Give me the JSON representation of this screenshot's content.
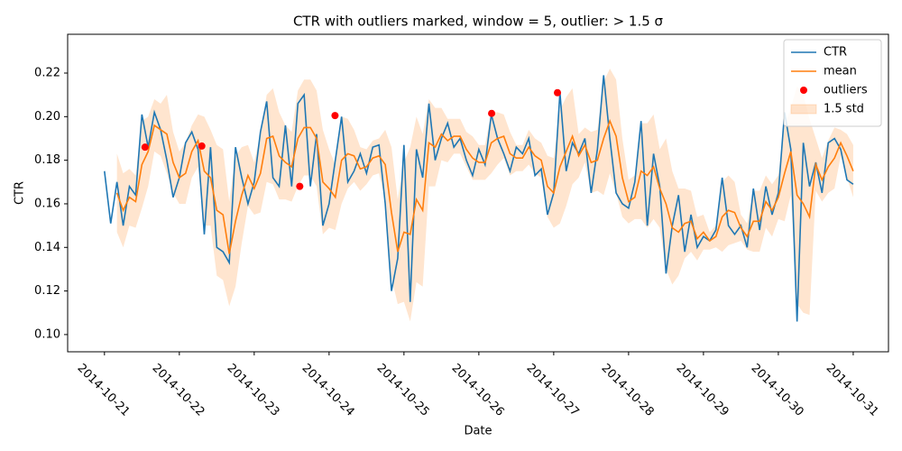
{
  "chart_data": {
    "type": "line",
    "title": "CTR with outliers marked, window = 5, outlier: > 1.5 σ",
    "xlabel": "Date",
    "ylabel": "CTR",
    "xlim": [
      -11.8,
      251.3
    ],
    "ylim": [
      0.0921,
      0.2378
    ],
    "xticks": [
      {
        "value": 0,
        "label": "2014-10-21"
      },
      {
        "value": 24,
        "label": "2014-10-22"
      },
      {
        "value": 48,
        "label": "2014-10-23"
      },
      {
        "value": 72,
        "label": "2014-10-24"
      },
      {
        "value": 96,
        "label": "2014-10-25"
      },
      {
        "value": 120,
        "label": "2014-10-26"
      },
      {
        "value": 144,
        "label": "2014-10-27"
      },
      {
        "value": 168,
        "label": "2014-10-28"
      },
      {
        "value": 192,
        "label": "2014-10-29"
      },
      {
        "value": 216,
        "label": "2014-10-30"
      },
      {
        "value": 240,
        "label": "2014-10-31"
      }
    ],
    "yticks": [
      {
        "value": 0.1,
        "label": "0.10"
      },
      {
        "value": 0.12,
        "label": "0.12"
      },
      {
        "value": 0.14,
        "label": "0.14"
      },
      {
        "value": 0.16,
        "label": "0.16"
      },
      {
        "value": 0.18,
        "label": "0.18"
      },
      {
        "value": 0.2,
        "label": "0.20"
      },
      {
        "value": 0.22,
        "label": "0.22"
      }
    ],
    "legend": "upper right",
    "series": [
      {
        "name": "CTR",
        "color": "#1f77b4",
        "x": [
          0,
          2,
          4,
          6,
          8,
          10,
          12,
          14,
          16,
          18,
          20,
          22,
          24,
          26,
          28,
          30,
          32,
          34,
          36,
          38,
          40,
          42,
          44,
          46,
          48,
          50,
          52,
          54,
          56,
          58,
          60,
          62,
          64,
          66,
          68,
          70,
          72,
          74,
          76,
          78,
          80,
          82,
          84,
          86,
          88,
          90,
          92,
          94,
          96,
          98,
          100,
          102,
          104,
          106,
          108,
          110,
          112,
          114,
          116,
          118,
          120,
          122,
          124,
          126,
          128,
          130,
          132,
          134,
          136,
          138,
          140,
          142,
          144,
          146,
          148,
          150,
          152,
          154,
          156,
          158,
          160,
          162,
          164,
          166,
          168,
          170,
          172,
          174,
          176,
          178,
          180,
          182,
          184,
          186,
          188,
          190,
          192,
          194,
          196,
          198,
          200,
          202,
          204,
          206,
          208,
          210,
          212,
          214,
          216,
          218,
          220,
          222,
          224,
          226,
          228,
          230,
          232,
          234,
          236,
          238,
          240
        ],
        "values": [
          0.175,
          0.151,
          0.17,
          0.15,
          0.168,
          0.164,
          0.201,
          0.186,
          0.202,
          0.194,
          0.18,
          0.163,
          0.172,
          0.188,
          0.193,
          0.185,
          0.146,
          0.186,
          0.14,
          0.138,
          0.133,
          0.186,
          0.172,
          0.16,
          0.17,
          0.193,
          0.207,
          0.172,
          0.168,
          0.196,
          0.168,
          0.206,
          0.21,
          0.168,
          0.192,
          0.15,
          0.16,
          0.18,
          0.2,
          0.17,
          0.175,
          0.183,
          0.174,
          0.186,
          0.187,
          0.16,
          0.12,
          0.135,
          0.187,
          0.115,
          0.185,
          0.172,
          0.206,
          0.18,
          0.19,
          0.197,
          0.186,
          0.19,
          0.18,
          0.173,
          0.185,
          0.178,
          0.201,
          0.19,
          0.183,
          0.175,
          0.186,
          0.183,
          0.19,
          0.173,
          0.176,
          0.155,
          0.165,
          0.211,
          0.175,
          0.188,
          0.183,
          0.19,
          0.165,
          0.185,
          0.219,
          0.19,
          0.165,
          0.16,
          0.158,
          0.17,
          0.198,
          0.15,
          0.183,
          0.168,
          0.128,
          0.15,
          0.164,
          0.138,
          0.155,
          0.14,
          0.145,
          0.143,
          0.148,
          0.172,
          0.15,
          0.146,
          0.15,
          0.14,
          0.167,
          0.148,
          0.168,
          0.155,
          0.165,
          0.202,
          0.185,
          0.106,
          0.188,
          0.168,
          0.179,
          0.165,
          0.188,
          0.19,
          0.185,
          0.171,
          0.169
        ]
      },
      {
        "name": "mean",
        "color": "#ff7f0e",
        "x": [
          0,
          2,
          4,
          6,
          8,
          10,
          12,
          14,
          16,
          18,
          20,
          22,
          24,
          26,
          28,
          30,
          32,
          34,
          36,
          38,
          40,
          42,
          44,
          46,
          48,
          50,
          52,
          54,
          56,
          58,
          60,
          62,
          64,
          66,
          68,
          70,
          72,
          74,
          76,
          78,
          80,
          82,
          84,
          86,
          88,
          90,
          92,
          94,
          96,
          98,
          100,
          102,
          104,
          106,
          108,
          110,
          112,
          114,
          116,
          118,
          120,
          122,
          124,
          126,
          128,
          130,
          132,
          134,
          136,
          138,
          140,
          142,
          144,
          146,
          148,
          150,
          152,
          154,
          156,
          158,
          160,
          162,
          164,
          166,
          168,
          170,
          172,
          174,
          176,
          178,
          180,
          182,
          184,
          186,
          188,
          190,
          192,
          194,
          196,
          198,
          200,
          202,
          204,
          206,
          208,
          210,
          212,
          214,
          216,
          218,
          220,
          222,
          224,
          226,
          228,
          230,
          232,
          234,
          236,
          238,
          240
        ],
        "values": [
          null,
          null,
          0.165,
          0.157,
          0.163,
          0.161,
          0.178,
          0.184,
          0.196,
          0.194,
          0.192,
          0.179,
          0.172,
          0.174,
          0.184,
          0.189,
          0.175,
          0.172,
          0.157,
          0.155,
          0.137,
          0.152,
          0.164,
          0.173,
          0.167,
          0.174,
          0.19,
          0.191,
          0.182,
          0.179,
          0.177,
          0.19,
          0.195,
          0.195,
          0.19,
          0.17,
          0.167,
          0.163,
          0.18,
          0.183,
          0.182,
          0.176,
          0.177,
          0.181,
          0.182,
          0.178,
          0.156,
          0.138,
          0.147,
          0.146,
          0.162,
          0.157,
          0.188,
          0.186,
          0.192,
          0.189,
          0.191,
          0.191,
          0.185,
          0.181,
          0.179,
          0.179,
          0.188,
          0.19,
          0.191,
          0.183,
          0.181,
          0.181,
          0.186,
          0.182,
          0.18,
          0.168,
          0.165,
          0.177,
          0.184,
          0.191,
          0.182,
          0.187,
          0.179,
          0.18,
          0.19,
          0.198,
          0.191,
          0.172,
          0.161,
          0.163,
          0.175,
          0.173,
          0.177,
          0.167,
          0.16,
          0.149,
          0.147,
          0.151,
          0.152,
          0.144,
          0.147,
          0.143,
          0.145,
          0.154,
          0.157,
          0.156,
          0.149,
          0.145,
          0.152,
          0.152,
          0.161,
          0.157,
          0.163,
          0.174,
          0.184,
          0.164,
          0.16,
          0.154,
          0.178,
          0.171,
          0.177,
          0.181,
          0.188,
          0.182,
          0.175
        ],
        "band": {
          "name": "1.5 std",
          "color": "#ff7f0e",
          "values": [
            null,
            null,
            0.018,
            0.017,
            0.013,
            0.012,
            0.02,
            0.016,
            0.012,
            0.012,
            0.018,
            0.014,
            0.012,
            0.014,
            0.012,
            0.012,
            0.025,
            0.022,
            0.03,
            0.03,
            0.024,
            0.03,
            0.022,
            0.014,
            0.012,
            0.018,
            0.02,
            0.022,
            0.02,
            0.017,
            0.016,
            0.022,
            0.022,
            0.022,
            0.022,
            0.024,
            0.018,
            0.015,
            0.02,
            0.016,
            0.012,
            0.01,
            0.008,
            0.008,
            0.008,
            0.016,
            0.03,
            0.024,
            0.032,
            0.04,
            0.038,
            0.035,
            0.02,
            0.018,
            0.012,
            0.01,
            0.008,
            0.008,
            0.008,
            0.01,
            0.008,
            0.008,
            0.014,
            0.012,
            0.01,
            0.01,
            0.006,
            0.006,
            0.008,
            0.008,
            0.008,
            0.014,
            0.016,
            0.026,
            0.025,
            0.022,
            0.01,
            0.008,
            0.014,
            0.014,
            0.026,
            0.024,
            0.026,
            0.018,
            0.01,
            0.01,
            0.022,
            0.024,
            0.024,
            0.018,
            0.03,
            0.026,
            0.02,
            0.016,
            0.014,
            0.01,
            0.008,
            0.004,
            0.005,
            0.016,
            0.016,
            0.014,
            0.006,
            0.006,
            0.014,
            0.014,
            0.012,
            0.012,
            0.01,
            0.022,
            0.02,
            0.05,
            0.05,
            0.045,
            0.012,
            0.01,
            0.012,
            0.014,
            0.006,
            0.01,
            0.012
          ]
        }
      },
      {
        "name": "outliers",
        "color": "#ff0000",
        "marker": "o",
        "x": [
          13,
          31.2,
          62.6,
          73.9,
          124.1,
          145.2
        ],
        "values": [
          0.186,
          0.1865,
          0.168,
          0.2005,
          0.2015,
          0.211
        ]
      }
    ]
  }
}
